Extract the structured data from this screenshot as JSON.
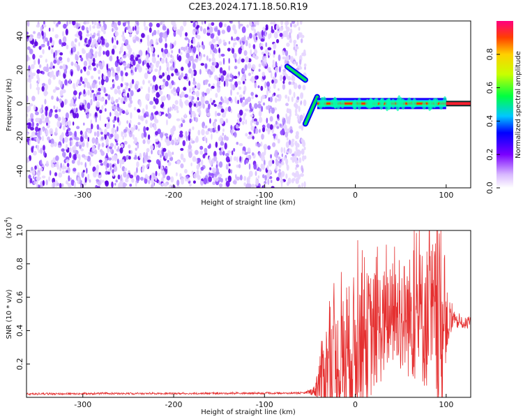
{
  "title": "C2E3.2024.171.18.50.R19",
  "chart_data": [
    {
      "type": "heatmap",
      "xlabel": "Height of straight line (km)",
      "ylabel": "Frequency (Hz)",
      "xlim": [
        -362,
        127
      ],
      "ylim": [
        -50,
        49
      ],
      "xticks": [
        -300,
        -200,
        -100,
        0,
        100
      ],
      "yticks": [
        -40,
        -20,
        0,
        20,
        40
      ],
      "colorbar": {
        "label": "Normalized spectral amplitude",
        "range": [
          0,
          1
        ],
        "ticks": [
          0.0,
          0.2,
          0.4,
          0.6,
          0.8
        ]
      },
      "noise_region_x": [
        -362,
        -55
      ],
      "features": [
        {
          "x": [
            -75,
            -55
          ],
          "y": [
            22,
            14
          ]
        },
        {
          "x": [
            -55,
            -42
          ],
          "y": [
            -12,
            4
          ]
        },
        {
          "x": [
            -42,
            100
          ],
          "y": [
            0,
            0
          ]
        },
        {
          "x": [
            100,
            127
          ],
          "y": [
            0,
            0
          ]
        }
      ]
    },
    {
      "type": "line",
      "xlabel": "Height of straight line (km)",
      "ylabel": "SNR (10 * v/v)",
      "scale_label": "(x10",
      "scale_exp": "4",
      "xlim": [
        -362,
        127
      ],
      "ylim": [
        0,
        10000
      ],
      "xticks": [
        -300,
        -200,
        -100,
        0,
        100
      ],
      "yticks": [
        2000,
        4000,
        6000,
        8000,
        10000
      ],
      "ytick_labels": [
        "0.2",
        "0.4",
        "0.6",
        "0.8",
        "1.0"
      ],
      "line_color": "#e53030",
      "envelope": [
        {
          "x": -362,
          "base": 200,
          "amp": 50
        },
        {
          "x": -55,
          "base": 250,
          "amp": 50
        },
        {
          "x": -45,
          "base": 400,
          "amp": 300
        },
        {
          "x": -38,
          "base": 1200,
          "amp": 2000
        },
        {
          "x": -30,
          "base": 2000,
          "amp": 3000
        },
        {
          "x": -20,
          "base": 1500,
          "amp": 4000
        },
        {
          "x": 0,
          "base": 3000,
          "amp": 4500
        },
        {
          "x": 40,
          "base": 4800,
          "amp": 3000
        },
        {
          "x": 80,
          "base": 4800,
          "amp": 4500
        },
        {
          "x": 95,
          "base": 4000,
          "amp": 6000
        },
        {
          "x": 100,
          "base": 4500,
          "amp": 2000
        },
        {
          "x": 110,
          "base": 4500,
          "amp": 400
        },
        {
          "x": 127,
          "base": 4400,
          "amp": 300
        }
      ]
    }
  ]
}
